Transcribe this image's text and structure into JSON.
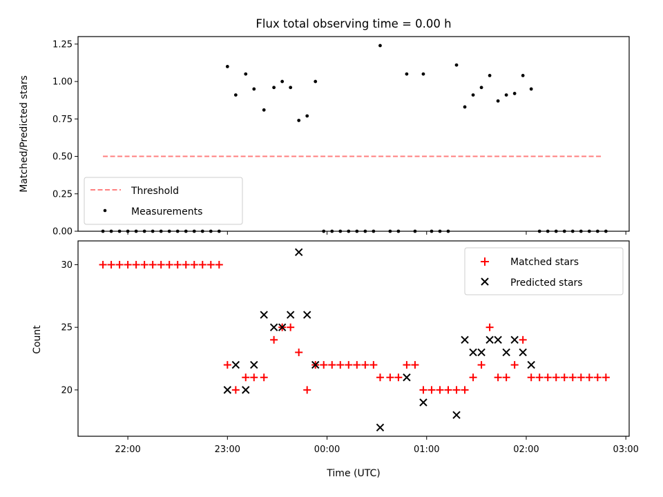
{
  "chart_data": [
    {
      "type": "scatter",
      "title": "Flux total observing time = 0.00 h",
      "xlabel": "",
      "ylabel": "Matched/Predicted stars",
      "ylim": [
        0,
        1.3
      ],
      "yticks": [
        0.0,
        0.25,
        0.5,
        0.75,
        1.0,
        1.25
      ],
      "ytick_labels": [
        "0.00",
        "0.25",
        "0.50",
        "0.75",
        "1.00",
        "1.25"
      ],
      "grid": false,
      "legend_position": "lower-left",
      "threshold": {
        "name": "Threshold",
        "value": 0.5,
        "x_start": "21:45",
        "x_end": "02:45",
        "color": "#ff7f7f"
      },
      "series": [
        {
          "name": "Measurements",
          "color": "#000000",
          "marker": "dot",
          "points": [
            [
              "21:45",
              0.0
            ],
            [
              "21:50",
              0.0
            ],
            [
              "21:55",
              0.0
            ],
            [
              "22:00",
              0.0
            ],
            [
              "22:05",
              0.0
            ],
            [
              "22:10",
              0.0
            ],
            [
              "22:15",
              0.0
            ],
            [
              "22:20",
              0.0
            ],
            [
              "22:25",
              0.0
            ],
            [
              "22:30",
              0.0
            ],
            [
              "22:35",
              0.0
            ],
            [
              "22:40",
              0.0
            ],
            [
              "22:45",
              0.0
            ],
            [
              "22:50",
              0.0
            ],
            [
              "22:55",
              0.0
            ],
            [
              "23:00",
              1.1
            ],
            [
              "23:05",
              0.91
            ],
            [
              "23:11",
              1.05
            ],
            [
              "23:16",
              0.95
            ],
            [
              "23:22",
              0.81
            ],
            [
              "23:28",
              0.96
            ],
            [
              "23:33",
              1.0
            ],
            [
              "23:38",
              0.96
            ],
            [
              "23:43",
              0.74
            ],
            [
              "23:48",
              0.77
            ],
            [
              "23:53",
              1.0
            ],
            [
              "23:58",
              0.0
            ],
            [
              "00:03",
              0.0
            ],
            [
              "00:08",
              0.0
            ],
            [
              "00:13",
              0.0
            ],
            [
              "00:18",
              0.0
            ],
            [
              "00:23",
              0.0
            ],
            [
              "00:28",
              0.0
            ],
            [
              "00:32",
              1.24
            ],
            [
              "00:38",
              0.0
            ],
            [
              "00:43",
              0.0
            ],
            [
              "00:48",
              1.05
            ],
            [
              "00:53",
              0.0
            ],
            [
              "00:58",
              1.05
            ],
            [
              "01:03",
              0.0
            ],
            [
              "01:08",
              0.0
            ],
            [
              "01:13",
              0.0
            ],
            [
              "01:18",
              1.11
            ],
            [
              "01:23",
              0.83
            ],
            [
              "01:28",
              0.91
            ],
            [
              "01:33",
              0.96
            ],
            [
              "01:38",
              1.04
            ],
            [
              "01:43",
              0.87
            ],
            [
              "01:48",
              0.91
            ],
            [
              "01:53",
              0.92
            ],
            [
              "01:58",
              1.04
            ],
            [
              "02:03",
              0.95
            ],
            [
              "02:08",
              0.0
            ],
            [
              "02:13",
              0.0
            ],
            [
              "02:18",
              0.0
            ],
            [
              "02:23",
              0.0
            ],
            [
              "02:28",
              0.0
            ],
            [
              "02:33",
              0.0
            ],
            [
              "02:38",
              0.0
            ],
            [
              "02:43",
              0.0
            ],
            [
              "02:48",
              0.0
            ]
          ]
        }
      ]
    },
    {
      "type": "scatter",
      "title": "",
      "xlabel": "Time (UTC)",
      "ylabel": "Count",
      "xlim": [
        "21:30",
        "03:02"
      ],
      "ylim": [
        16.3,
        31.9
      ],
      "yticks": [
        20,
        25,
        30
      ],
      "ytick_labels": [
        "20",
        "25",
        "30"
      ],
      "xticks": [
        "22:00",
        "23:00",
        "00:00",
        "01:00",
        "02:00",
        "03:00"
      ],
      "xtick_labels": [
        "22:00",
        "23:00",
        "00:00",
        "01:00",
        "02:00",
        "03:00"
      ],
      "grid": false,
      "legend_position": "top-right",
      "series": [
        {
          "name": "Matched stars",
          "color": "#ff0000",
          "marker": "plus",
          "points": [
            [
              "21:45",
              30
            ],
            [
              "21:50",
              30
            ],
            [
              "21:55",
              30
            ],
            [
              "22:00",
              30
            ],
            [
              "22:05",
              30
            ],
            [
              "22:10",
              30
            ],
            [
              "22:15",
              30
            ],
            [
              "22:20",
              30
            ],
            [
              "22:25",
              30
            ],
            [
              "22:30",
              30
            ],
            [
              "22:35",
              30
            ],
            [
              "22:40",
              30
            ],
            [
              "22:45",
              30
            ],
            [
              "22:50",
              30
            ],
            [
              "22:55",
              30
            ],
            [
              "23:00",
              22
            ],
            [
              "23:05",
              20
            ],
            [
              "23:11",
              21
            ],
            [
              "23:16",
              21
            ],
            [
              "23:22",
              21
            ],
            [
              "23:28",
              24
            ],
            [
              "23:33",
              25
            ],
            [
              "23:38",
              25
            ],
            [
              "23:43",
              23
            ],
            [
              "23:48",
              20
            ],
            [
              "23:53",
              22
            ],
            [
              "23:58",
              22
            ],
            [
              "00:03",
              22
            ],
            [
              "00:08",
              22
            ],
            [
              "00:13",
              22
            ],
            [
              "00:18",
              22
            ],
            [
              "00:23",
              22
            ],
            [
              "00:28",
              22
            ],
            [
              "00:32",
              21
            ],
            [
              "00:38",
              21
            ],
            [
              "00:43",
              21
            ],
            [
              "00:48",
              22
            ],
            [
              "00:53",
              22
            ],
            [
              "00:58",
              20
            ],
            [
              "01:03",
              20
            ],
            [
              "01:08",
              20
            ],
            [
              "01:13",
              20
            ],
            [
              "01:18",
              20
            ],
            [
              "01:23",
              20
            ],
            [
              "01:28",
              21
            ],
            [
              "01:33",
              22
            ],
            [
              "01:38",
              25
            ],
            [
              "01:43",
              21
            ],
            [
              "01:48",
              21
            ],
            [
              "01:53",
              22
            ],
            [
              "01:58",
              24
            ],
            [
              "02:03",
              21
            ],
            [
              "02:08",
              21
            ],
            [
              "02:13",
              21
            ],
            [
              "02:18",
              21
            ],
            [
              "02:23",
              21
            ],
            [
              "02:28",
              21
            ],
            [
              "02:33",
              21
            ],
            [
              "02:38",
              21
            ],
            [
              "02:43",
              21
            ],
            [
              "02:48",
              21
            ]
          ]
        },
        {
          "name": "Predicted stars",
          "color": "#000000",
          "marker": "x",
          "points": [
            [
              "23:00",
              20
            ],
            [
              "23:05",
              22
            ],
            [
              "23:11",
              20
            ],
            [
              "23:16",
              22
            ],
            [
              "23:22",
              26
            ],
            [
              "23:28",
              25
            ],
            [
              "23:33",
              25
            ],
            [
              "23:38",
              26
            ],
            [
              "23:43",
              31
            ],
            [
              "23:48",
              26
            ],
            [
              "23:53",
              22
            ],
            [
              "00:32",
              17
            ],
            [
              "00:48",
              21
            ],
            [
              "00:58",
              19
            ],
            [
              "01:18",
              18
            ],
            [
              "01:23",
              24
            ],
            [
              "01:28",
              23
            ],
            [
              "01:33",
              23
            ],
            [
              "01:38",
              24
            ],
            [
              "01:43",
              24
            ],
            [
              "01:48",
              23
            ],
            [
              "01:53",
              24
            ],
            [
              "01:58",
              23
            ],
            [
              "02:03",
              22
            ]
          ]
        }
      ]
    }
  ]
}
